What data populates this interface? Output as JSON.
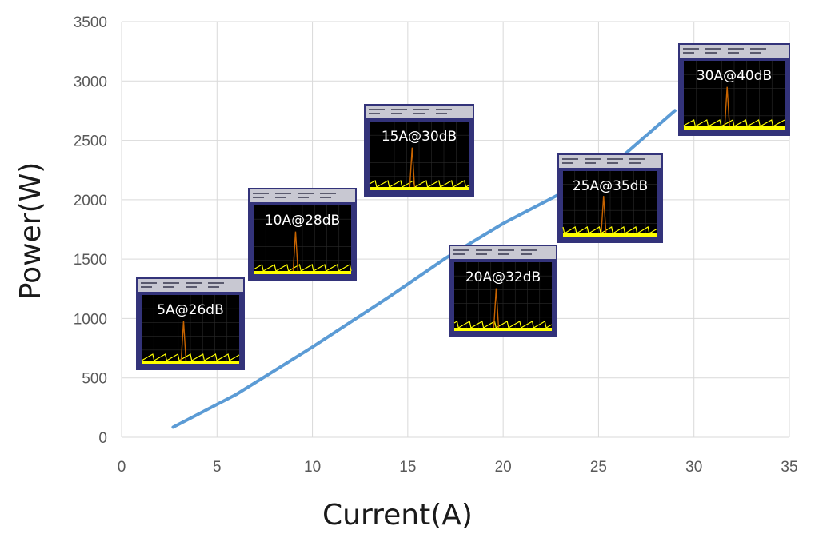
{
  "chart_data": {
    "type": "line",
    "title": "",
    "xlabel": "Current(A)",
    "ylabel": "Power(W)",
    "xlim": [
      0,
      35
    ],
    "ylim": [
      0,
      3500
    ],
    "xticks": [
      0,
      5,
      10,
      15,
      20,
      25,
      30,
      35
    ],
    "yticks": [
      0,
      500,
      1000,
      1500,
      2000,
      2500,
      3000,
      3500
    ],
    "grid": true,
    "legend": "none",
    "series": [
      {
        "color": "#5b9bd5",
        "x": [
          2.7,
          6,
          10,
          14,
          17,
          20,
          23,
          26,
          29
        ],
        "y": [
          85,
          360,
          760,
          1180,
          1510,
          1800,
          2050,
          2330,
          2750
        ]
      }
    ],
    "annotations": [
      {
        "label": "5A@26dB"
      },
      {
        "label": "10A@28dB"
      },
      {
        "label": "15A@30dB"
      },
      {
        "label": "20A@32dB"
      },
      {
        "label": "25A@35dB"
      },
      {
        "label": "30A@40dB"
      }
    ]
  },
  "colors": {
    "grid": "#d9d9d9",
    "line": "#5b9bd5",
    "spectrum_bg": "#000000",
    "spectrum_frame": "#33337a",
    "spectrum_noise": "#ffff00",
    "spectrum_peak": "#c86400"
  }
}
